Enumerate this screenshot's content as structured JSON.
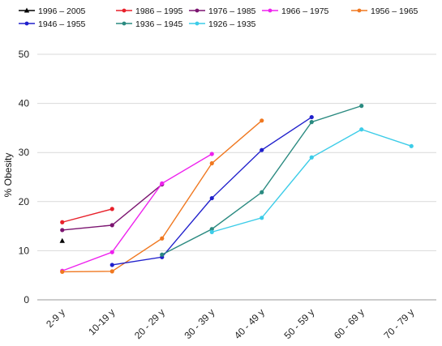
{
  "chart_data": {
    "type": "line",
    "title": "",
    "xlabel": "",
    "ylabel": "% Obesity",
    "ylim": [
      0,
      50
    ],
    "yticks": [
      0,
      10,
      20,
      30,
      40,
      50
    ],
    "grid": "horizontal",
    "legend_position": "top",
    "categories": [
      "2-9 y",
      "10-19 y",
      "20 - 29 y",
      "30 - 39 y",
      "40 - 49 y",
      "50 - 59 y",
      "60 - 69 y",
      "70 - 79 y"
    ],
    "series": [
      {
        "name": "1996 – 2005",
        "color": "#000000",
        "marker": "triangle",
        "values": [
          12,
          null,
          null,
          null,
          null,
          null,
          null,
          null
        ]
      },
      {
        "name": "1986 – 1995",
        "color": "#e8202a",
        "marker": "circle",
        "values": [
          15.8,
          18.5,
          null,
          null,
          null,
          null,
          null,
          null
        ]
      },
      {
        "name": "1976 – 1985",
        "color": "#7b1470",
        "marker": "circle",
        "values": [
          14.2,
          15.2,
          23.5,
          null,
          null,
          null,
          null,
          null
        ]
      },
      {
        "name": "1966 – 1975",
        "color": "#ee22ee",
        "marker": "circle",
        "values": [
          5.9,
          9.7,
          23.7,
          29.7,
          null,
          null,
          null,
          null
        ]
      },
      {
        "name": "1956 – 1965",
        "color": "#f07820",
        "marker": "circle",
        "values": [
          5.7,
          5.8,
          12.5,
          27.8,
          36.5,
          null,
          null,
          null
        ]
      },
      {
        "name": "1946 – 1955",
        "color": "#2020cc",
        "marker": "circle",
        "values": [
          null,
          7.1,
          8.7,
          20.7,
          30.5,
          37.2,
          null,
          null
        ]
      },
      {
        "name": "1936 – 1945",
        "color": "#2a8a80",
        "marker": "circle",
        "values": [
          null,
          null,
          9.2,
          14.4,
          21.9,
          36.2,
          39.5,
          null
        ]
      },
      {
        "name": "1926 – 1935",
        "color": "#3ccce8",
        "marker": "circle",
        "values": [
          null,
          null,
          null,
          13.8,
          16.7,
          29.0,
          34.7,
          31.3
        ]
      }
    ]
  }
}
